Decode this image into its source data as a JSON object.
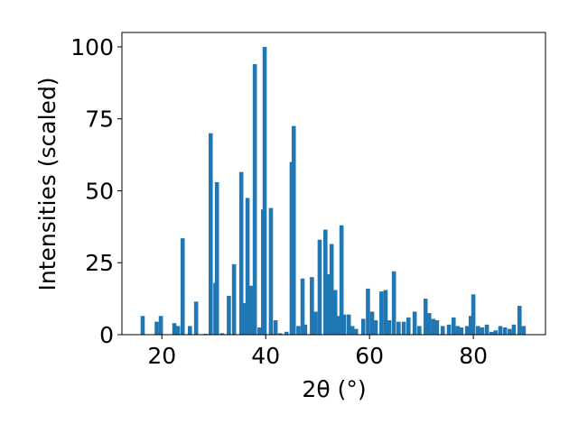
{
  "chart_data": {
    "type": "bar",
    "xlabel": "2θ (°)",
    "ylabel": "Intensities (scaled)",
    "color": "#1f77b4",
    "x": [
      16.3,
      19.0,
      19.8,
      22.4,
      23.1,
      24.0,
      25.4,
      26.6,
      28.4,
      29.4,
      30.3,
      30.6,
      31.6,
      32.9,
      33.9,
      35.3,
      35.8,
      36.5,
      37.2,
      37.9,
      38.8,
      39.5,
      39.8,
      41.0,
      41.9,
      42.8,
      44.0,
      45.0,
      45.4,
      46.3,
      47.1,
      47.6,
      48.9,
      49.6,
      50.4,
      51.5,
      52.0,
      52.7,
      53.4,
      54.0,
      54.6,
      55.1,
      56.0,
      56.7,
      57.4,
      58.8,
      59.7,
      60.5,
      61.2,
      62.3,
      63.1,
      63.8,
      64.7,
      65.6,
      66.6,
      67.5,
      68.7,
      69.6,
      70.8,
      71.5,
      72.3,
      73.0,
      74.1,
      75.3,
      76.2,
      77.0,
      77.7,
      78.8,
      79.5,
      80.0,
      80.9,
      81.7,
      82.6,
      83.5,
      84.3,
      85.2,
      86.1,
      87.0,
      87.8,
      88.9,
      89.7
    ],
    "values": [
      6.5,
      4.5,
      6.5,
      4,
      3,
      33.5,
      3,
      11.5,
      0.3,
      70,
      18,
      53,
      0.5,
      13.5,
      24.5,
      56.5,
      11,
      47.5,
      17,
      94,
      2.5,
      43.5,
      100,
      44,
      5,
      0.5,
      1,
      60,
      72.5,
      3,
      19.5,
      3.5,
      20,
      8,
      33,
      36.5,
      21,
      31.5,
      15.5,
      6.5,
      38,
      7,
      7,
      3,
      2,
      5.5,
      16,
      8,
      5,
      15,
      15.5,
      5,
      22,
      4.5,
      4.5,
      6,
      8,
      3,
      12.5,
      7.5,
      5.5,
      5,
      3,
      3.5,
      6,
      3,
      2.5,
      3,
      6.5,
      14,
      3,
      2.5,
      3.5,
      1,
      1.5,
      3,
      2.5,
      2,
      3.5,
      10,
      3
    ],
    "xlim": [
      12.3,
      93.9
    ],
    "ylim": [
      0,
      105
    ],
    "xticks": [
      20,
      40,
      60,
      80
    ],
    "yticks": [
      0,
      25,
      50,
      75,
      100
    ]
  }
}
